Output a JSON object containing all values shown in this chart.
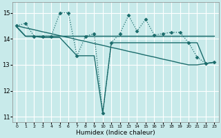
{
  "background_color": "#c8eaea",
  "grid_color": "#b0d8d8",
  "line_color": "#1a6b6b",
  "xlabel": "Humidex (Indice chaleur)",
  "xlim": [
    -0.5,
    23.5
  ],
  "ylim": [
    10.8,
    15.4
  ],
  "yticks": [
    11,
    12,
    13,
    14,
    15
  ],
  "xticks": [
    0,
    1,
    2,
    3,
    4,
    5,
    6,
    7,
    8,
    9,
    10,
    11,
    12,
    13,
    14,
    15,
    16,
    17,
    18,
    19,
    20,
    21,
    22,
    23
  ],
  "series": [
    {
      "x": [
        0,
        1,
        2,
        3,
        4,
        5,
        6,
        7,
        8,
        9,
        10,
        11,
        12,
        13,
        14,
        15,
        16,
        17,
        18,
        19,
        20,
        21,
        22,
        23
      ],
      "y": [
        14.5,
        14.6,
        14.1,
        14.1,
        14.1,
        15.0,
        15.0,
        13.35,
        14.1,
        14.2,
        11.15,
        13.85,
        14.2,
        14.9,
        14.3,
        14.75,
        14.15,
        14.2,
        14.25,
        14.25,
        13.85,
        13.3,
        13.05,
        13.1
      ],
      "style": "dotted",
      "marker": "D",
      "markersize": 2.5,
      "linewidth": 0.9
    },
    {
      "x": [
        0,
        1,
        2,
        3,
        4,
        5,
        6,
        7,
        8,
        9,
        10,
        11,
        12,
        13,
        14,
        15,
        16,
        17,
        18,
        19,
        20,
        21,
        22,
        23
      ],
      "y": [
        14.45,
        14.1,
        14.1,
        14.1,
        14.1,
        14.1,
        14.1,
        14.1,
        14.1,
        14.1,
        14.1,
        14.1,
        14.1,
        14.1,
        14.1,
        14.1,
        14.1,
        14.1,
        14.1,
        14.1,
        14.1,
        14.1,
        14.1,
        14.1
      ],
      "style": "-",
      "marker": null,
      "markersize": 0,
      "linewidth": 1.1
    },
    {
      "x": [
        0,
        1,
        2,
        3,
        4,
        5,
        6,
        7,
        8,
        9,
        10,
        11,
        12,
        13,
        14,
        15,
        16,
        17,
        18,
        19,
        20,
        21,
        22,
        23
      ],
      "y": [
        14.45,
        14.1,
        14.1,
        14.05,
        14.05,
        14.05,
        13.7,
        13.35,
        13.35,
        13.35,
        11.15,
        13.85,
        13.85,
        13.85,
        13.85,
        13.85,
        13.85,
        13.85,
        13.85,
        13.85,
        13.85,
        13.85,
        13.05,
        13.1
      ],
      "style": "-",
      "marker": null,
      "markersize": 0,
      "linewidth": 1.0
    },
    {
      "x": [
        0,
        1,
        2,
        3,
        4,
        5,
        6,
        7,
        8,
        9,
        10,
        11,
        12,
        13,
        14,
        15,
        16,
        17,
        18,
        19,
        20,
        21,
        22,
        23
      ],
      "y": [
        14.5,
        14.42,
        14.35,
        14.27,
        14.2,
        14.12,
        14.05,
        13.97,
        13.9,
        13.82,
        13.75,
        13.67,
        13.6,
        13.52,
        13.45,
        13.37,
        13.3,
        13.22,
        13.15,
        13.07,
        13.0,
        13.0,
        13.05,
        13.1
      ],
      "style": "-",
      "marker": null,
      "markersize": 0,
      "linewidth": 1.0
    }
  ]
}
